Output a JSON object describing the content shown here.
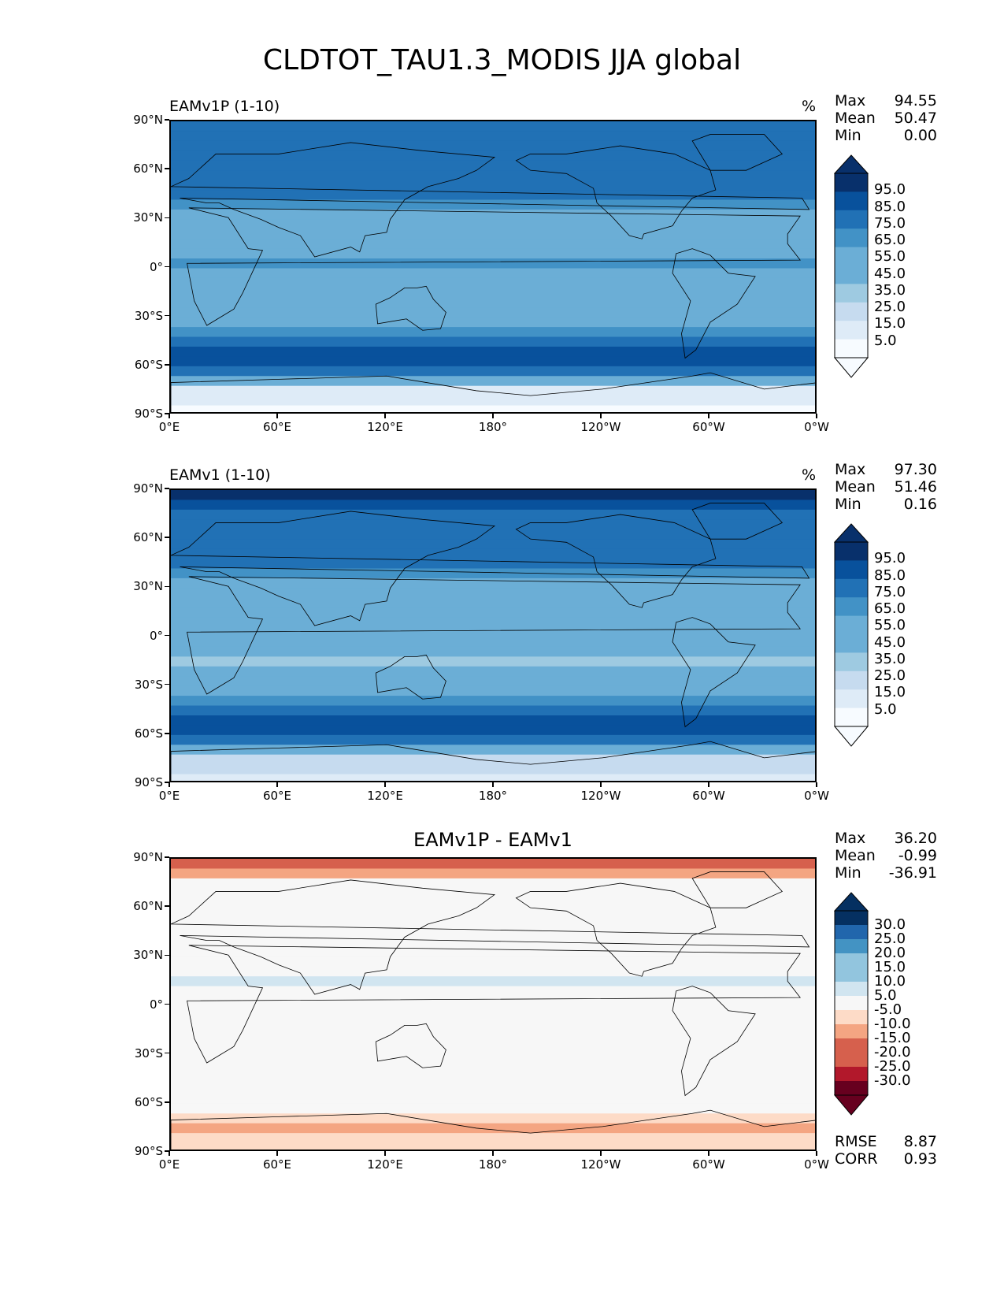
{
  "figure": {
    "title": "CLDTOT_TAU1.3_MODIS JJA global"
  },
  "axes": {
    "y_ticks": [
      "90°N",
      "60°N",
      "30°N",
      "0°",
      "30°S",
      "60°S",
      "90°S"
    ],
    "x_ticks": [
      "0°E",
      "60°E",
      "120°E",
      "180°",
      "120°W",
      "60°W",
      "0°W"
    ]
  },
  "colors": {
    "blues": [
      "#f7fbff",
      "#deebf7",
      "#c6dbef",
      "#9ecae1",
      "#6baed6",
      "#4292c6",
      "#2171b5",
      "#08519c",
      "#08306b"
    ],
    "diverging": [
      "#67001f",
      "#b2182b",
      "#d6604d",
      "#f4a582",
      "#fddbc7",
      "#f7f7f7",
      "#d1e5f0",
      "#92c5de",
      "#4393c3",
      "#2166ac",
      "#053061"
    ],
    "land_outline": "#000000"
  },
  "panels": [
    {
      "title_left": "EAMv1P (1-10)",
      "title_right": "%",
      "stats": {
        "max_label": "Max",
        "max": "94.55",
        "mean_label": "Mean",
        "mean": "50.47",
        "min_label": "Min",
        "min": "0.00"
      },
      "colorbar": [
        "95.0",
        "85.0",
        "75.0",
        "65.0",
        "55.0",
        "45.0",
        "35.0",
        "25.0",
        "15.0",
        "5.0"
      ]
    },
    {
      "title_left": "EAMv1 (1-10)",
      "title_right": "%",
      "stats": {
        "max_label": "Max",
        "max": "97.30",
        "mean_label": "Mean",
        "mean": "51.46",
        "min_label": "Min",
        "min": "0.16"
      },
      "colorbar": [
        "95.0",
        "85.0",
        "75.0",
        "65.0",
        "55.0",
        "45.0",
        "35.0",
        "25.0",
        "15.0",
        "5.0"
      ]
    },
    {
      "title_center": "EAMv1P - EAMv1",
      "stats": {
        "max_label": "Max",
        "max": "36.20",
        "mean_label": "Mean",
        "mean": "-0.99",
        "min_label": "Min",
        "min": "-36.91"
      },
      "colorbar": [
        "30.0",
        "25.0",
        "20.0",
        "15.0",
        "10.0",
        "5.0",
        "-5.0",
        "-10.0",
        "-15.0",
        "-20.0",
        "-25.0",
        "-30.0"
      ],
      "bottom_stats": {
        "rmse_label": "RMSE",
        "rmse": "8.87",
        "corr_label": "CORR",
        "corr": "0.93"
      }
    }
  ],
  "chart_data": [
    {
      "type": "heatmap",
      "title": "EAMv1P (1-10)",
      "units": "%",
      "xlim": [
        0,
        360
      ],
      "ylim": [
        -90,
        90
      ],
      "levels": [
        0,
        5,
        15,
        25,
        35,
        45,
        55,
        65,
        75,
        85,
        95,
        100
      ],
      "zonal_mean_profile": {
        "lat": [
          90,
          75,
          60,
          45,
          30,
          15,
          0,
          -15,
          -30,
          -45,
          -60,
          -75,
          -90
        ],
        "value": [
          65,
          70,
          72,
          62,
          42,
          48,
          52,
          40,
          40,
          72,
          82,
          12,
          2
        ]
      }
    },
    {
      "type": "heatmap",
      "title": "EAMv1 (1-10)",
      "units": "%",
      "xlim": [
        0,
        360
      ],
      "ylim": [
        -90,
        90
      ],
      "levels": [
        0,
        5,
        15,
        25,
        35,
        45,
        55,
        65,
        75,
        85,
        95,
        100
      ],
      "zonal_mean_profile": {
        "lat": [
          90,
          75,
          60,
          45,
          30,
          15,
          0,
          -15,
          -30,
          -45,
          -60,
          -75,
          -90
        ],
        "value": [
          88,
          72,
          70,
          62,
          40,
          42,
          50,
          38,
          40,
          70,
          80,
          22,
          8
        ]
      }
    },
    {
      "type": "heatmap",
      "title": "EAMv1P - EAMv1",
      "xlim": [
        0,
        360
      ],
      "ylim": [
        -90,
        90
      ],
      "levels": [
        -30,
        -25,
        -20,
        -15,
        -10,
        -5,
        5,
        10,
        15,
        20,
        25,
        30
      ],
      "zonal_mean_profile": {
        "lat": [
          90,
          75,
          60,
          45,
          30,
          15,
          0,
          -15,
          -30,
          -45,
          -60,
          -75,
          -90
        ],
        "value": [
          -22,
          -3,
          2,
          0,
          2,
          6,
          2,
          2,
          0,
          2,
          2,
          -10,
          -6
        ]
      }
    }
  ]
}
